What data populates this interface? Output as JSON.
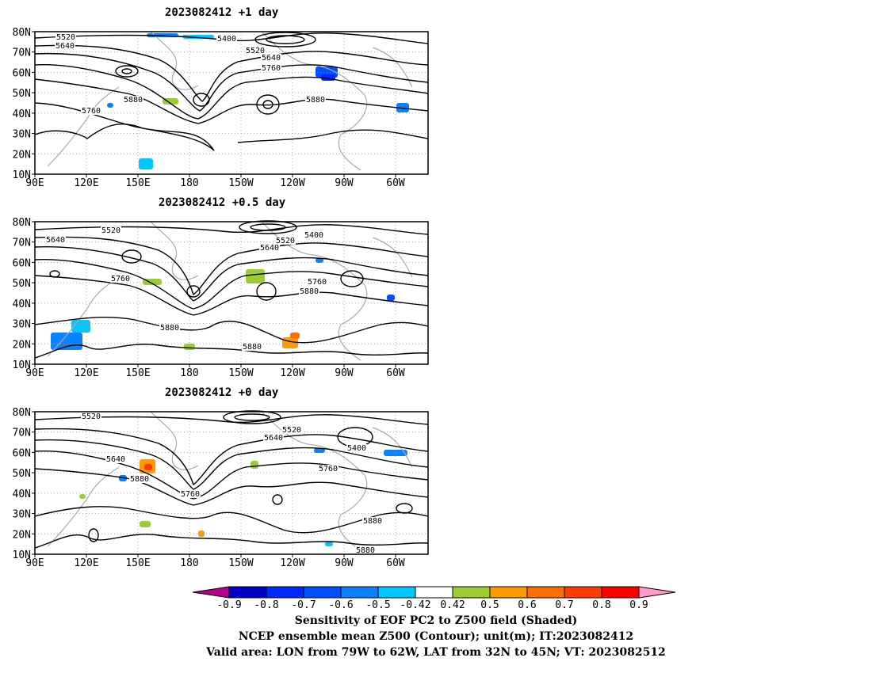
{
  "panels": [
    {
      "title": "2023082412  +1 day",
      "contour_labels": [
        "5520",
        "5640",
        "5400",
        "5520",
        "5640",
        "5760",
        "5880",
        "5760",
        "5880"
      ]
    },
    {
      "title": "2023082412  +0.5 day",
      "contour_labels": [
        "5520",
        "5640",
        "5520",
        "5400",
        "5640",
        "5760",
        "5760",
        "5880",
        "5880",
        "5880"
      ]
    },
    {
      "title": "2023082412  +0 day",
      "contour_labels": [
        "5520",
        "5520",
        "5640",
        "5640",
        "5400",
        "5760",
        "5880",
        "5760",
        "5880",
        "5880"
      ]
    }
  ],
  "lat_ticks": [
    "80N",
    "70N",
    "60N",
    "50N",
    "40N",
    "30N",
    "20N",
    "10N"
  ],
  "lon_ticks": [
    "90E",
    "120E",
    "150E",
    "180",
    "150W",
    "120W",
    "90W",
    "60W"
  ],
  "colorbar": {
    "tick_labels": [
      "-0.9",
      "-0.8",
      "-0.7",
      "-0.6",
      "-0.5",
      "-0.42",
      "0.42",
      "0.5",
      "0.6",
      "0.7",
      "0.8",
      "0.9"
    ],
    "colors": [
      "#b4008c",
      "#0000c8",
      "#0028ff",
      "#0050ff",
      "#0a82ff",
      "#00c8ff",
      "#ffffff",
      "#9bcd32",
      "#ff9b00",
      "#ff6e00",
      "#ff3c00",
      "#ff0000",
      "#ff9bc8"
    ]
  },
  "caption": {
    "line1": "Sensitivity of EOF PC2 to Z500 field (Shaded)",
    "line2": "NCEP ensemble mean Z500 (Contour); unit(m); IT:2023082412",
    "line3": "Valid area: LON from 79W to 62W, LAT from 32N to 45N; VT: 2023082512"
  }
}
